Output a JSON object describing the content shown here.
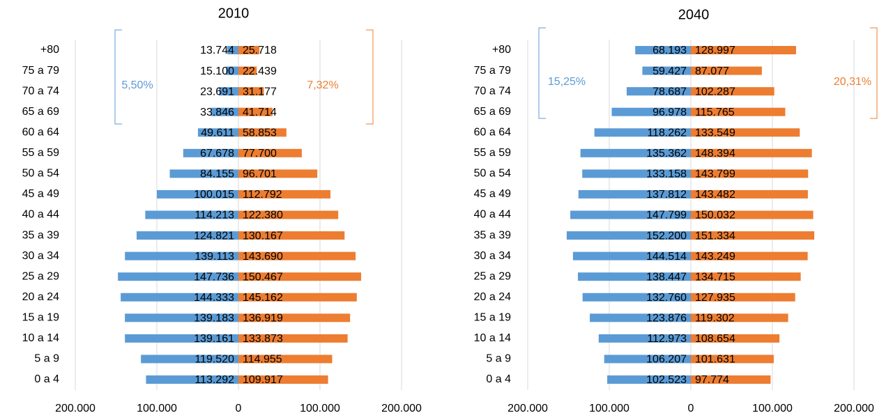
{
  "chart_data": [
    {
      "type": "bar",
      "title": "2010",
      "categories": [
        "+80",
        "75 a 79",
        "70 a 74",
        "65 a 69",
        "60 a 64",
        "55 a 59",
        "50 a 54",
        "45 a 49",
        "40 a 44",
        "35 a 39",
        "30 a 34",
        "25 a 29",
        "20 a 24",
        "15 a 19",
        "10 a 14",
        "5 a 9",
        "0 a 4"
      ],
      "series": [
        {
          "color": "#5b9bd5",
          "values": [
            -13744,
            -15100,
            -23691,
            -33846,
            -49611,
            -67678,
            -84155,
            -100015,
            -114213,
            -124821,
            -139113,
            -147736,
            -144333,
            -139183,
            -139161,
            -119520,
            -113292
          ],
          "value_labels": [
            "13.744",
            "15.100",
            "23.691",
            "33.846",
            "49.611",
            "67.678",
            "84.155",
            "100.015",
            "114.213",
            "124.821",
            "139.113",
            "147.736",
            "144.333",
            "139.183",
            "139.161",
            "119.520",
            "113.292"
          ]
        },
        {
          "color": "#ed7d31",
          "values": [
            25718,
            22439,
            31177,
            41714,
            58853,
            77700,
            96701,
            112792,
            122380,
            130167,
            143690,
            150467,
            145162,
            136919,
            133873,
            114955,
            109917
          ],
          "value_labels": [
            "25.718",
            "22.439",
            "31.177",
            "41.714",
            "58.853",
            "77.700",
            "96.701",
            "112.792",
            "122.380",
            "130.167",
            "143.690",
            "150.467",
            "145.162",
            "136.919",
            "133.873",
            "114.955",
            "109.917"
          ]
        }
      ],
      "xlim": [
        -200000,
        200000
      ],
      "xticks": [
        {
          "value": -200000,
          "label": "200.000"
        },
        {
          "value": -100000,
          "label": "100.000"
        },
        0,
        {
          "value": 100000,
          "label": "100.000"
        },
        {
          "value": 200000,
          "label": "200.000"
        }
      ],
      "grid": true,
      "annotations": [
        {
          "text": "5,50%",
          "color": "#5b9bd5"
        },
        {
          "text": "7,32%",
          "color": "#ed7d31"
        }
      ]
    },
    {
      "type": "bar",
      "title": "2040",
      "categories": [
        "+80",
        "75 a 79",
        "70 a 74",
        "65 a 69",
        "60 a 64",
        "55 a 59",
        "50 a 54",
        "45 a 49",
        "40 a 44",
        "35 a 39",
        "30 a 34",
        "25 a 29",
        "20 a 24",
        "15 a 19",
        "10 a 14",
        "5 a 9",
        "0 a 4"
      ],
      "series": [
        {
          "color": "#5b9bd5",
          "values": [
            -68193,
            -59427,
            -78687,
            -96978,
            -118262,
            -135362,
            -133158,
            -137812,
            -147799,
            -152200,
            -144514,
            -138447,
            -132760,
            -123876,
            -112973,
            -106207,
            -102523
          ],
          "value_labels": [
            "68.193",
            "59.427",
            "78.687",
            "96.978",
            "118.262",
            "135.362",
            "133.158",
            "137.812",
            "147.799",
            "152.200",
            "144.514",
            "138.447",
            "132.760",
            "123.876",
            "112.973",
            "106.207",
            "102.523"
          ]
        },
        {
          "color": "#ed7d31",
          "values": [
            128997,
            87077,
            102287,
            115765,
            133549,
            148394,
            143799,
            143482,
            150032,
            151334,
            143249,
            134715,
            127935,
            119302,
            108654,
            101631,
            97774
          ],
          "value_labels": [
            "128.997",
            "87.077",
            "102.287",
            "115.765",
            "133.549",
            "148.394",
            "143.799",
            "143.482",
            "150.032",
            "151.334",
            "143.249",
            "134.715",
            "127.935",
            "119.302",
            "108.654",
            "101.631",
            "97.774"
          ]
        }
      ],
      "xlim": [
        -200000,
        200000
      ],
      "xticks": [
        {
          "value": -200000,
          "label": "200.000"
        },
        {
          "value": -100000,
          "label": "100.000"
        },
        0,
        {
          "value": 100000,
          "label": "100.000"
        },
        {
          "value": 200000,
          "label": "200.000"
        }
      ],
      "grid": true,
      "annotations": [
        {
          "text": "15,25%",
          "color": "#5b9bd5"
        },
        {
          "text": "20,31%",
          "color": "#ed7d31"
        }
      ]
    }
  ]
}
